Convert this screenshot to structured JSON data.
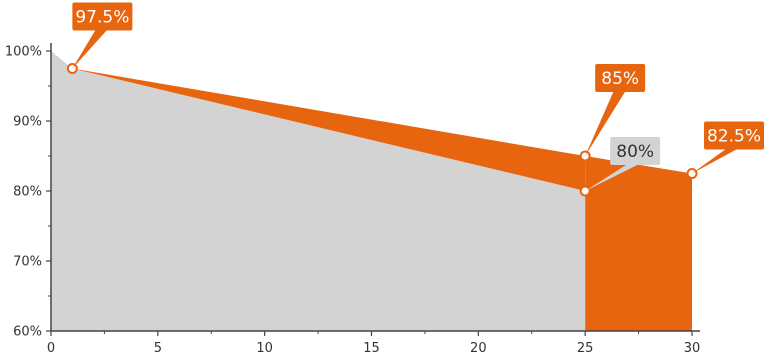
{
  "chart_data": {
    "type": "area",
    "title": "",
    "xlabel": "",
    "ylabel": "",
    "xlim": [
      0,
      30
    ],
    "ylim": [
      60,
      100
    ],
    "x_ticks": [
      0,
      5,
      10,
      15,
      20,
      25,
      30
    ],
    "y_ticks": [
      60,
      70,
      80,
      90,
      100
    ],
    "x_tick_labels": [
      "0",
      "5",
      "10",
      "15",
      "20",
      "25",
      "30"
    ],
    "y_tick_labels": [
      "60%",
      "70%",
      "80%",
      "90%",
      "100%"
    ],
    "grid": false,
    "legend": "none",
    "series": [
      {
        "x": [
          0,
          1,
          25
        ],
        "y": [
          100,
          97.5,
          80
        ],
        "color": "#d3d3d3"
      },
      {
        "x": [
          1,
          25,
          30
        ],
        "y": [
          97.5,
          85,
          82.5
        ],
        "color": "#e8650f"
      }
    ],
    "annotations": [
      {
        "text": "97.5%",
        "x": 1,
        "y": 97.5,
        "style": "orange"
      },
      {
        "text": "85%",
        "x": 25,
        "y": 85,
        "style": "orange"
      },
      {
        "text": "80%",
        "x": 25,
        "y": 80,
        "style": "gray"
      },
      {
        "text": "82.5%",
        "x": 30,
        "y": 82.5,
        "style": "orange"
      }
    ]
  }
}
